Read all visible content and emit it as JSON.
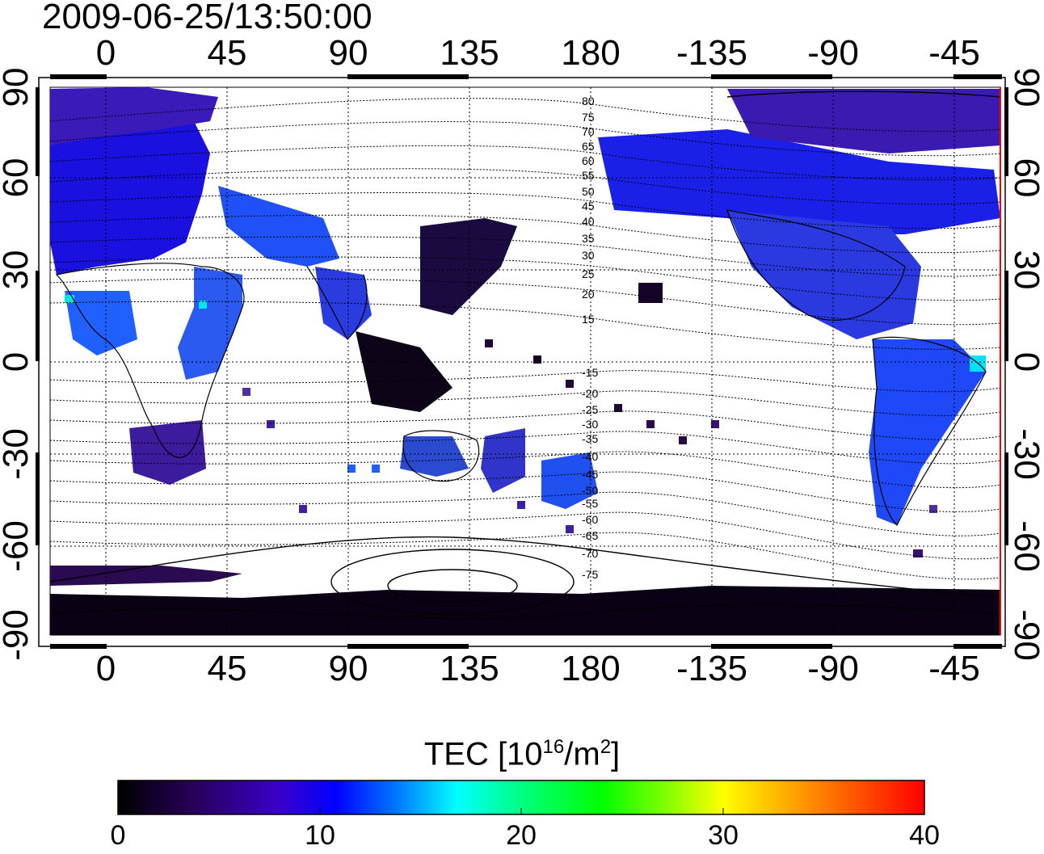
{
  "title": "2009-06-25/13:50:00",
  "map": {
    "lon_ticks_top": [
      "0",
      "45",
      "90",
      "135",
      "180",
      "-135",
      "-90",
      "-45"
    ],
    "lon_ticks_bottom": [
      "0",
      "45",
      "90",
      "135",
      "180",
      "-135",
      "-90",
      "-45"
    ],
    "lat_ticks_left": [
      "90",
      "60",
      "30",
      "0",
      "-30",
      "-60",
      "-90"
    ],
    "lat_ticks_right": [
      "90",
      "60",
      "30",
      "0",
      "-30",
      "-60",
      "-90"
    ],
    "contour_labels_north": [
      "80",
      "75",
      "70",
      "65",
      "60",
      "55",
      "50",
      "45",
      "40",
      "35",
      "30",
      "25",
      "20",
      "15"
    ],
    "contour_labels_south": [
      "-15",
      "-20",
      "-25",
      "-30",
      "-35",
      "-40",
      "-45",
      "-50",
      "-55",
      "-60",
      "-65",
      "-70",
      "-75"
    ],
    "grid": true
  },
  "colorbar": {
    "title_text": "TEC  [10",
    "title_exp1": "16",
    "title_mid": "/m",
    "title_exp2": "2",
    "title_end": "]",
    "tick_labels": [
      "0",
      "10",
      "20",
      "30",
      "40"
    ],
    "range": [
      0,
      40
    ],
    "colors": [
      "#000000",
      "#2a0060",
      "#3a00c8",
      "#0000ff",
      "#0080ff",
      "#00ffff",
      "#00ff80",
      "#00ff00",
      "#80ff00",
      "#ffff00",
      "#ff8000",
      "#ff0000"
    ]
  }
}
